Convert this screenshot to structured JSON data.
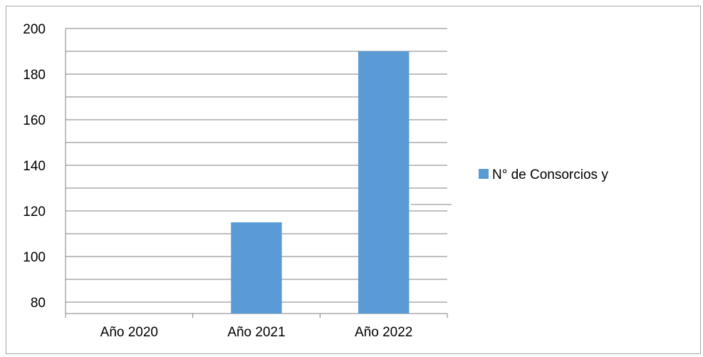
{
  "chart_data": {
    "type": "bar",
    "title": "",
    "xlabel": "",
    "ylabel": "",
    "categories": [
      "Año 2020",
      "Año 2021",
      "Año 2022"
    ],
    "series": [
      {
        "name": "N° de Consorcios y",
        "values": [
          null,
          115,
          190
        ],
        "color": "#5b9bd5"
      }
    ],
    "ylim": [
      75,
      200
    ],
    "y_tick_labels": [
      "80",
      "100",
      "120",
      "140",
      "160",
      "180",
      "200"
    ],
    "y_tick_values": [
      80,
      100,
      120,
      140,
      160,
      180,
      200
    ],
    "grid": true,
    "legend_position": "right"
  }
}
